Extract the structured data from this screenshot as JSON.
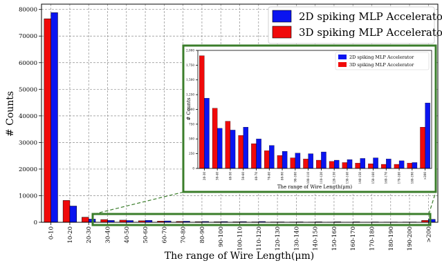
{
  "colors": {
    "series_2d": "#0a14f0",
    "series_3d": "#f00a0a",
    "zoom_box": "#3a7d2a",
    "grid": "#8c8c8c"
  },
  "chart_data": [
    {
      "type": "bar",
      "id": "main",
      "xlabel": "The range of Wire Length(μm)",
      "ylabel": "# Counts",
      "ylim": [
        0,
        82000
      ],
      "yticks": [
        0,
        10000,
        20000,
        30000,
        40000,
        50000,
        60000,
        70000,
        80000
      ],
      "grid": true,
      "legend_position": "top-right",
      "categories": [
        "0-10",
        "10-20",
        "20-30",
        "30-40",
        "40-50",
        "50-60",
        "60-70",
        "70-80",
        "80-90",
        "90-100",
        "100-110",
        "110-120",
        "120-130",
        "130-140",
        "140-150",
        "150-160",
        "160-170",
        "170-180",
        "180-190",
        "190-200",
        ">200"
      ],
      "series": [
        {
          "name": "2D spiking MLP Accelerator",
          "values": [
            78800,
            6100,
            1190,
            680,
            650,
            700,
            500,
            390,
            290,
            260,
            250,
            280,
            140,
            150,
            170,
            180,
            160,
            130,
            100,
            110,
            1110
          ]
        },
        {
          "name": "3D spiking MLP Accelerator",
          "values": [
            76500,
            8200,
            1910,
            1020,
            800,
            560,
            420,
            300,
            220,
            180,
            160,
            140,
            120,
            100,
            90,
            80,
            70,
            70,
            90,
            100,
            700
          ]
        }
      ]
    },
    {
      "type": "bar",
      "id": "inset",
      "xlabel": "The range of Wire Length(μm)",
      "ylabel": "# Counts",
      "ylim": [
        0,
        2000
      ],
      "yticks": [
        0,
        250,
        500,
        750,
        1000,
        1250,
        1500,
        1750,
        2000
      ],
      "ytick_labels": [
        "0",
        "250",
        "500",
        "750",
        "1000",
        "1,250",
        "1,500",
        "1,750",
        "2,000"
      ],
      "grid": false,
      "legend_position": "top-right",
      "categories": [
        "20-30",
        "30-40",
        "40-50",
        "50-60",
        "60-70",
        "70-80",
        "80-90",
        "90-100",
        "100-110",
        "110-120",
        "120-130",
        "130-140",
        "140-150",
        "150-160",
        "160-170",
        "170-180",
        "180-190",
        ">200"
      ],
      "series": [
        {
          "name": "2D spiking MLP Accelerator",
          "values": [
            1190,
            680,
            650,
            700,
            500,
            390,
            290,
            260,
            250,
            280,
            140,
            150,
            170,
            180,
            160,
            130,
            100,
            1110
          ]
        },
        {
          "name": "3D spiking MLP Accelerator",
          "values": [
            1910,
            1020,
            800,
            560,
            420,
            300,
            220,
            180,
            160,
            140,
            120,
            100,
            90,
            80,
            70,
            70,
            90,
            700
          ]
        }
      ]
    }
  ]
}
